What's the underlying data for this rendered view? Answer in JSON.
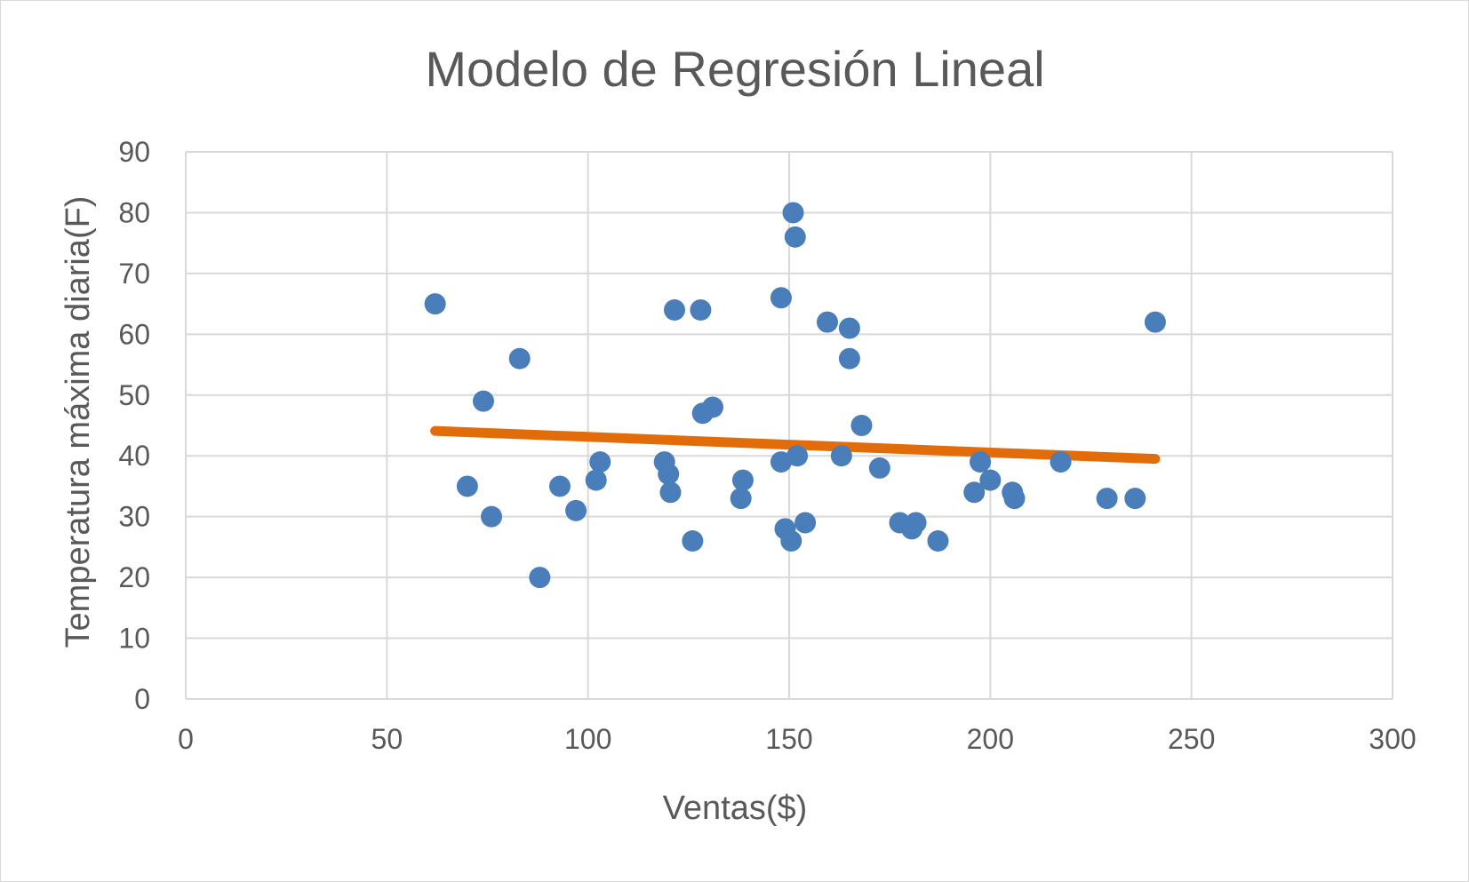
{
  "chart_data": {
    "type": "scatter",
    "title": "Modelo de Regresión Lineal",
    "xlabel": "Ventas($)",
    "ylabel": "Temperatura máxima diaria(F)",
    "xlim": [
      0,
      300
    ],
    "ylim": [
      0,
      90
    ],
    "x_ticks": [
      "0",
      "50",
      "100",
      "150",
      "200",
      "250",
      "300"
    ],
    "y_ticks": [
      "0",
      "10",
      "20",
      "30",
      "40",
      "50",
      "60",
      "70",
      "80",
      "90"
    ],
    "grid": true,
    "point_color": "#4a7ebb",
    "line_color": "#e36c0a",
    "points": [
      {
        "x": 62,
        "y": 65
      },
      {
        "x": 70,
        "y": 35
      },
      {
        "x": 74,
        "y": 49
      },
      {
        "x": 76,
        "y": 30
      },
      {
        "x": 83,
        "y": 56
      },
      {
        "x": 88,
        "y": 20
      },
      {
        "x": 93,
        "y": 35
      },
      {
        "x": 97,
        "y": 31
      },
      {
        "x": 102,
        "y": 36
      },
      {
        "x": 103,
        "y": 39
      },
      {
        "x": 119,
        "y": 39
      },
      {
        "x": 120,
        "y": 37
      },
      {
        "x": 120.5,
        "y": 34
      },
      {
        "x": 121.5,
        "y": 64
      },
      {
        "x": 126,
        "y": 26
      },
      {
        "x": 128,
        "y": 64
      },
      {
        "x": 128.5,
        "y": 47
      },
      {
        "x": 131,
        "y": 48
      },
      {
        "x": 138,
        "y": 33
      },
      {
        "x": 138.5,
        "y": 36
      },
      {
        "x": 148,
        "y": 66
      },
      {
        "x": 148,
        "y": 39
      },
      {
        "x": 149,
        "y": 28
      },
      {
        "x": 150.5,
        "y": 26
      },
      {
        "x": 151,
        "y": 80
      },
      {
        "x": 151.5,
        "y": 76
      },
      {
        "x": 152,
        "y": 40
      },
      {
        "x": 154,
        "y": 29
      },
      {
        "x": 159.5,
        "y": 62
      },
      {
        "x": 163,
        "y": 40
      },
      {
        "x": 165,
        "y": 61
      },
      {
        "x": 165,
        "y": 56
      },
      {
        "x": 168,
        "y": 45
      },
      {
        "x": 172.5,
        "y": 38
      },
      {
        "x": 177.5,
        "y": 29
      },
      {
        "x": 180.5,
        "y": 28
      },
      {
        "x": 181.5,
        "y": 29
      },
      {
        "x": 187,
        "y": 26
      },
      {
        "x": 196,
        "y": 34
      },
      {
        "x": 197.5,
        "y": 39
      },
      {
        "x": 200,
        "y": 36
      },
      {
        "x": 205.5,
        "y": 34
      },
      {
        "x": 206,
        "y": 33
      },
      {
        "x": 217.5,
        "y": 39
      },
      {
        "x": 229,
        "y": 33
      },
      {
        "x": 236,
        "y": 33
      },
      {
        "x": 241,
        "y": 62
      }
    ],
    "trendline": {
      "x": [
        62,
        241
      ],
      "y": [
        44.1,
        39.5
      ]
    }
  }
}
